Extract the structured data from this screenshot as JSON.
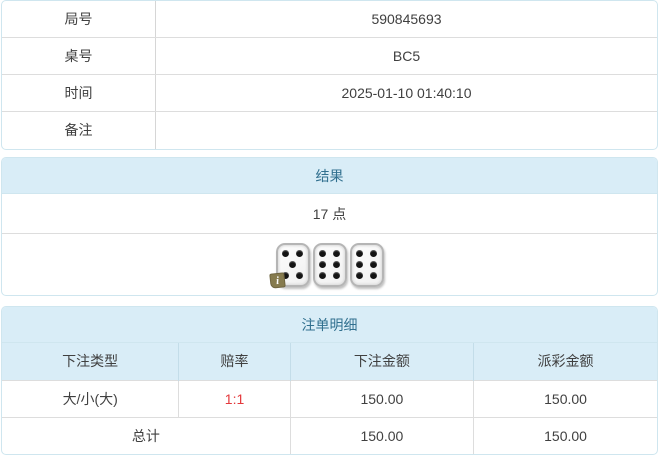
{
  "info_table": {
    "rows": [
      {
        "label": "局号",
        "value": "590845693"
      },
      {
        "label": "桌号",
        "value": "BC5"
      },
      {
        "label": "时间",
        "value": "2025-01-10 01:40:10"
      },
      {
        "label": "备注",
        "value": ""
      }
    ]
  },
  "result_panel": {
    "title": "结果",
    "points": "17 点",
    "dice": [
      5,
      6,
      6
    ],
    "info_badge": "i"
  },
  "bets_panel": {
    "title": "注单明细",
    "columns": [
      "下注类型",
      "赔率",
      "下注金额",
      "派彩金额"
    ],
    "rows": [
      {
        "bet_type": "大/小(大)",
        "odds": "1:1",
        "bet_amount": "150.00",
        "payout_amount": "150.00"
      }
    ],
    "total": {
      "label": "总计",
      "bet_amount": "150.00",
      "payout_amount": "150.00"
    }
  },
  "colors": {
    "header_bg": "#d9edf7",
    "header_text": "#31708f",
    "panel_border": "#cfe6ef",
    "row_border": "#dddddd",
    "odds_red": "#e4393c",
    "badge_olive": "#867b4e"
  }
}
